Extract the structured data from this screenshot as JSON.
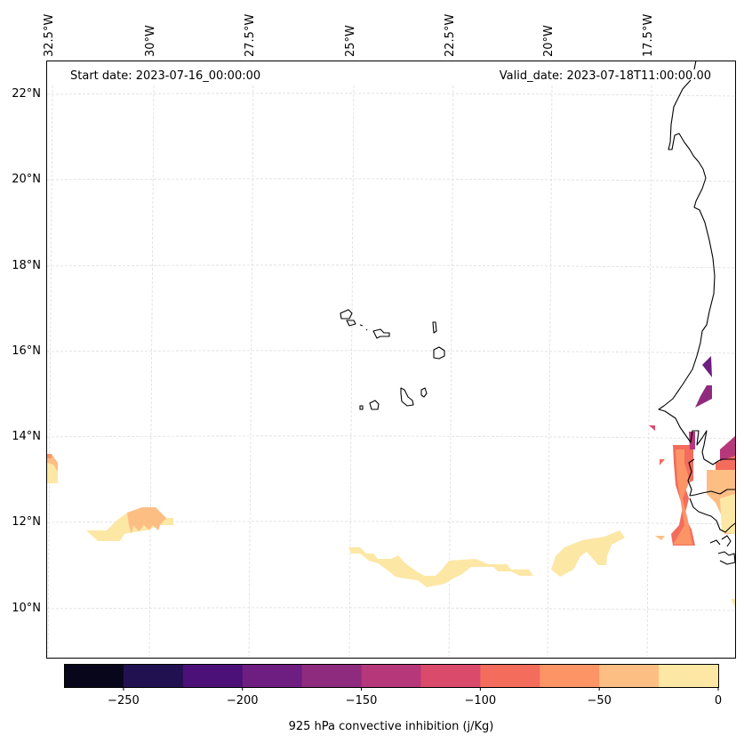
{
  "chart_data": {
    "type": "heatmap",
    "title": "",
    "projection": "map (lat/lon)",
    "variable": "925 hPa convective inhibition",
    "units": "j/Kg",
    "annotations": {
      "start_date": "Start date: 2023-07-16_00:00:00",
      "valid_date": "Valid_date: 2023-07-18T11:00:00.00"
    },
    "lon_ticks": [
      "32.5°W",
      "30°W",
      "27.5°W",
      "25°W",
      "22.5°W",
      "20°W",
      "17.5°W"
    ],
    "lon_tick_values": [
      -32.5,
      -30,
      -27.5,
      -25,
      -22.5,
      -20,
      -17.5
    ],
    "lat_ticks": [
      "22°N",
      "20°N",
      "18°N",
      "16°N",
      "14°N",
      "12°N",
      "10°N"
    ],
    "lat_tick_values": [
      22,
      20,
      18,
      16,
      14,
      12,
      10
    ],
    "extent": {
      "lon": [
        -32.5,
        -16.3
      ],
      "lat": [
        9.0,
        22.8
      ]
    },
    "grid": true,
    "colorbar": {
      "label": "925 hPa convective inhibition (j/Kg)",
      "orientation": "horizontal",
      "placement": "bottom",
      "range": [
        -275,
        0
      ],
      "levels": [
        -275,
        -250,
        -225,
        -200,
        -175,
        -150,
        -125,
        -100,
        -75,
        -50,
        -25,
        0
      ],
      "tick_labels": [
        "−250",
        "−200",
        "−150",
        "−100",
        "−50",
        "0"
      ],
      "tick_values": [
        -250,
        -200,
        -150,
        -100,
        -50,
        0
      ],
      "colors": [
        "#08061b",
        "#221150",
        "#4b1178",
        "#6d1e80",
        "#8f2b7f",
        "#b6377a",
        "#da4a6b",
        "#f36c5c",
        "#fc9466",
        "#fdbe84",
        "#fce7a5"
      ]
    },
    "regions": [
      {
        "name": "west-edge-patch",
        "level_range": [
          -50,
          0
        ],
        "lon": -32.4,
        "lat": 13.0
      },
      {
        "name": "central-atlantic-patch",
        "level_range": [
          -50,
          0
        ],
        "lon": -30.5,
        "lat": 11.9
      },
      {
        "name": "southern-band",
        "level_range": [
          -25,
          0
        ],
        "lon_range": [
          -25.0,
          -19.5
        ],
        "lat_range": [
          10.5,
          11.8
        ]
      },
      {
        "name": "mauritania-coast-patches",
        "level_range": [
          -175,
          -150
        ],
        "lon": -16.7,
        "lat": 15.5
      },
      {
        "name": "senegal-gambia-coast",
        "level_range": [
          -125,
          0
        ],
        "lon_range": [
          -17.5,
          -16.3
        ],
        "lat_range": [
          11.5,
          14.0
        ]
      }
    ],
    "coastlines": "West Africa coast (Mauritania, Senegal, Gambia, Guinea-Bissau) and Cape Verde islands"
  }
}
